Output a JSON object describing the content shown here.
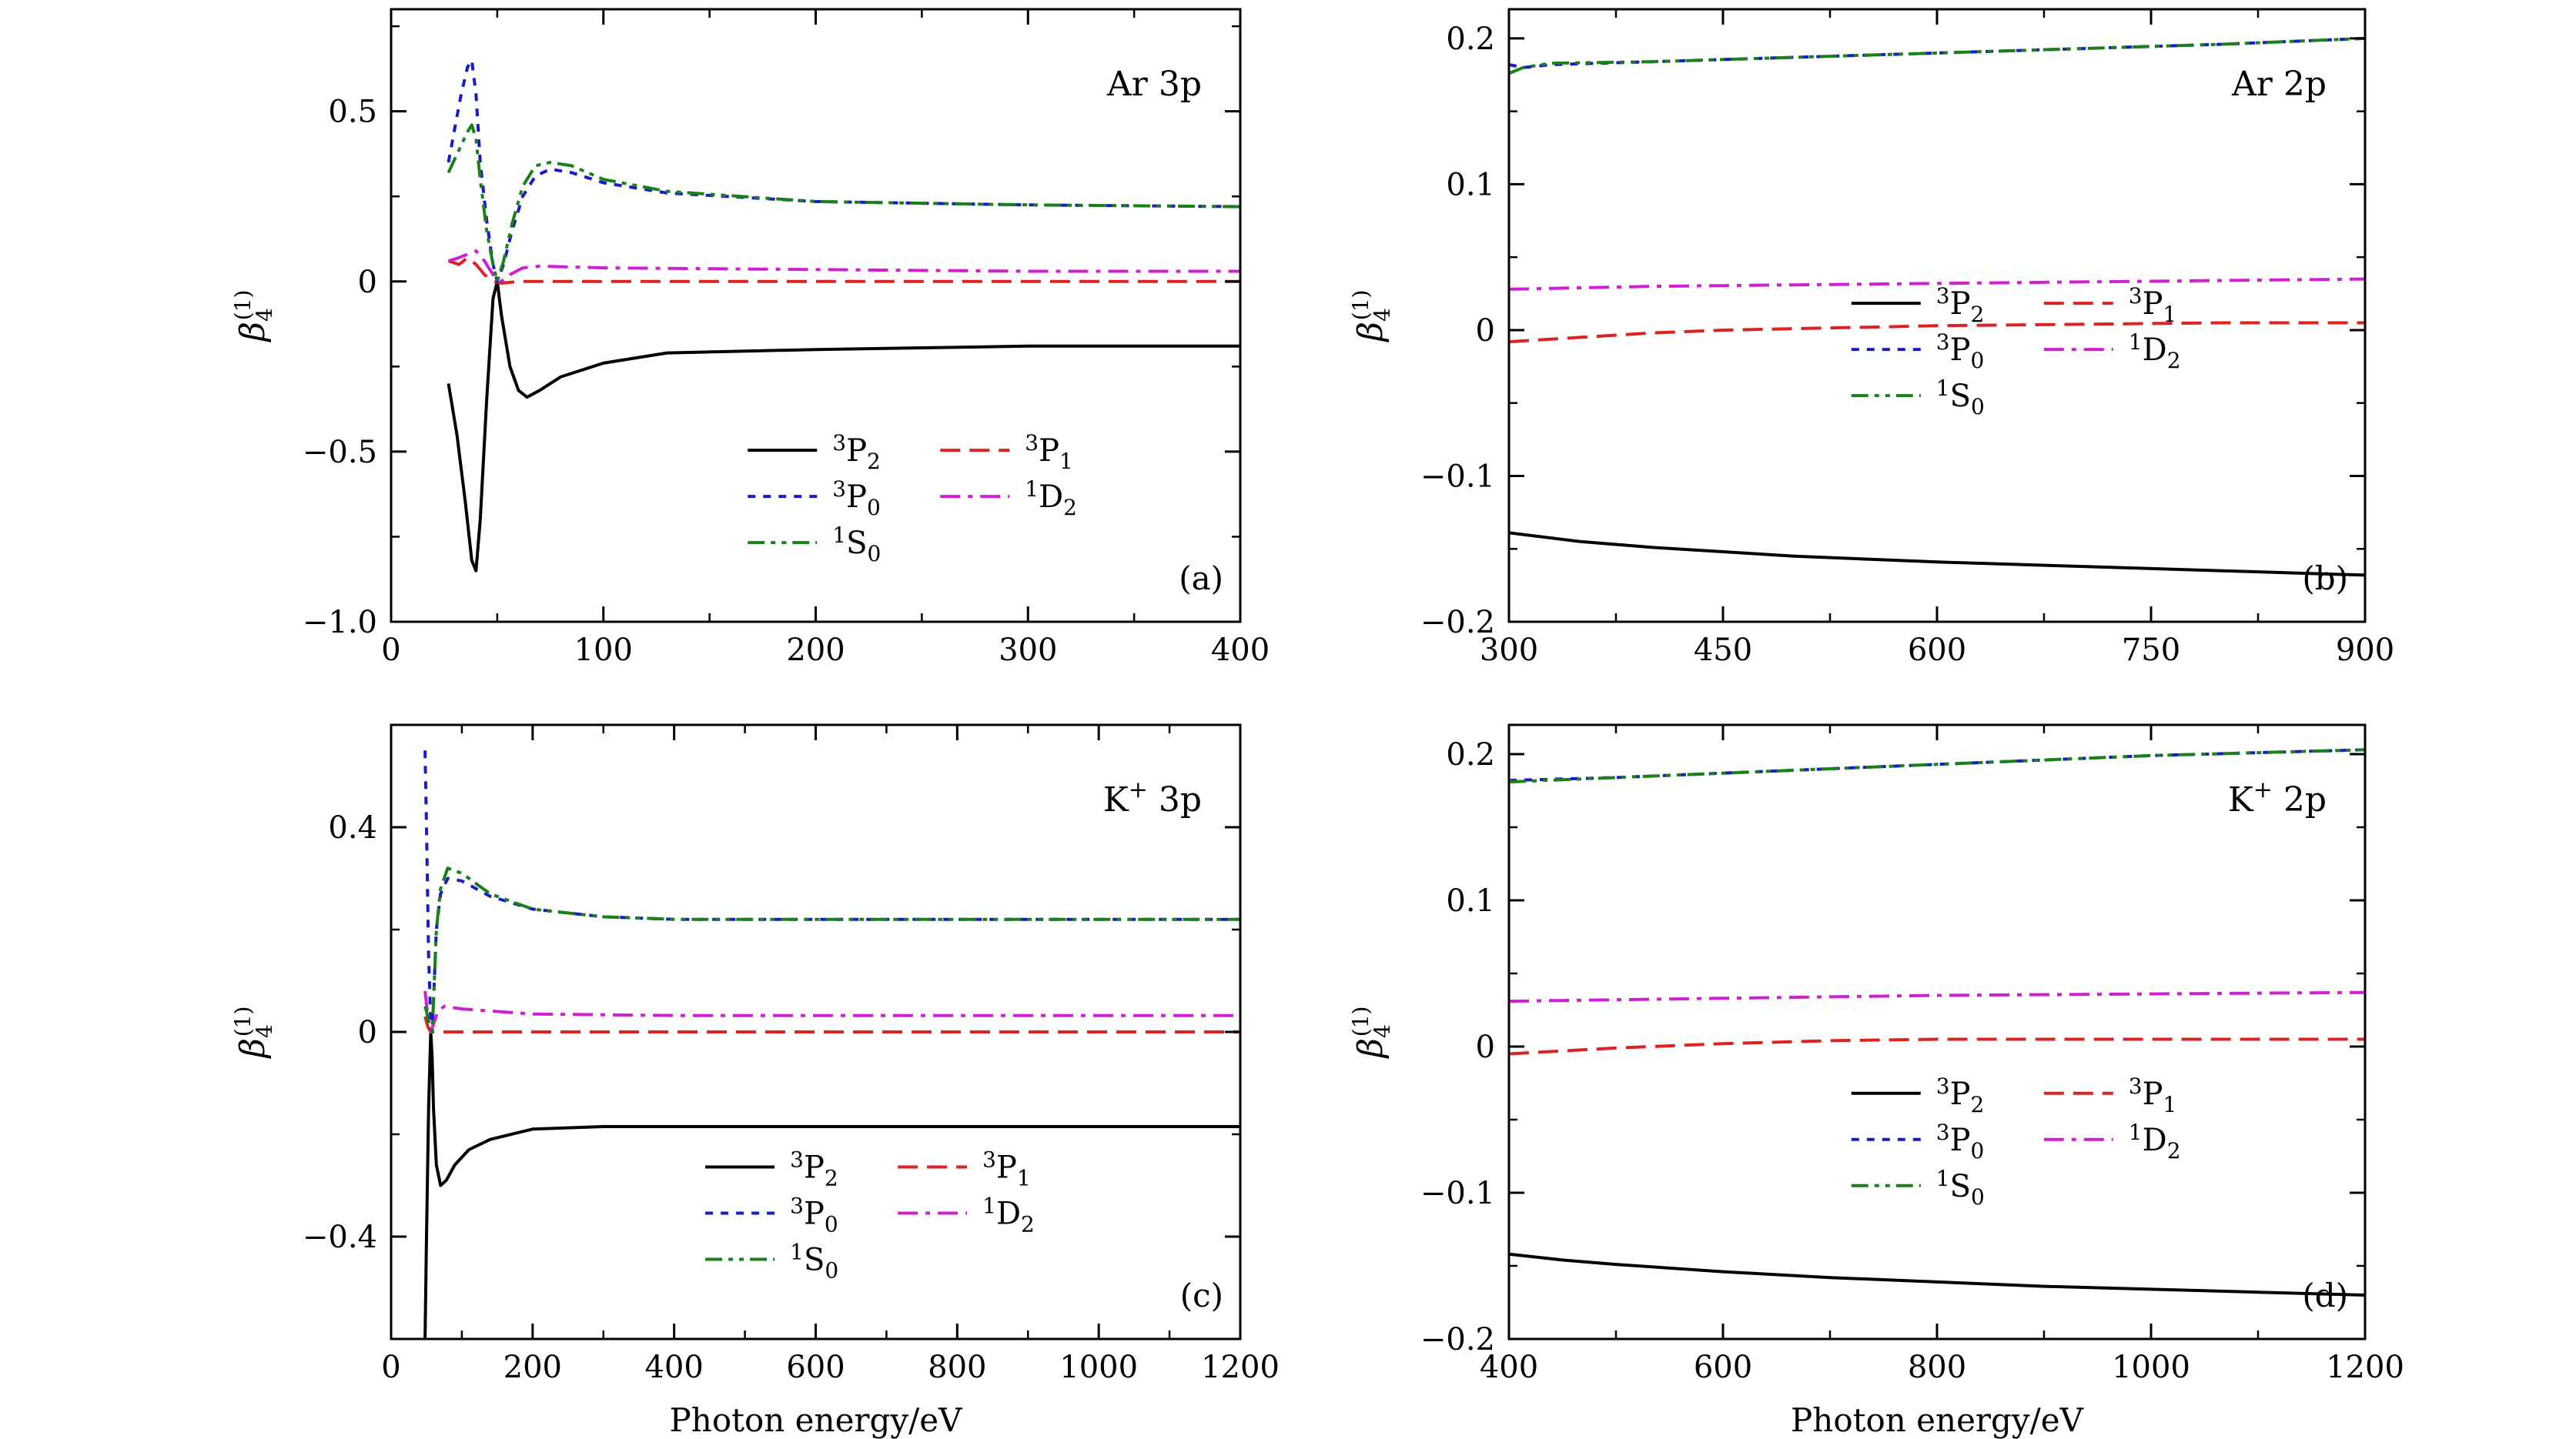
{
  "colors": {
    "3P2": "#000000",
    "3P1": "#dd2222",
    "3P0": "#1a1acc",
    "1D2": "#d01fd0",
    "1S0": "#1a801a"
  },
  "legend_entries": [
    {
      "key": "3P2",
      "sup": "3",
      "base": "P",
      "sub": "2"
    },
    {
      "key": "3P1",
      "sup": "3",
      "base": "P",
      "sub": "1"
    },
    {
      "key": "3P0",
      "sup": "3",
      "base": "P",
      "sub": "0"
    },
    {
      "key": "1D2",
      "sup": "1",
      "base": "D",
      "sub": "2"
    },
    {
      "key": "1S0",
      "sup": "1",
      "base": "S",
      "sub": "0"
    }
  ],
  "xlabel_text": "Photon energy/eV",
  "ylabel": {
    "symbol": "β",
    "sub": "4",
    "sup": "(1)"
  },
  "chart_data": [
    {
      "type": "line",
      "id": "a",
      "title": "Ar 3p",
      "title_sup": "",
      "title_tail": "",
      "panel_label": "(a)",
      "xlim": [
        0,
        400
      ],
      "ylim": [
        -1.0,
        0.8
      ],
      "xticks": [
        0,
        100,
        200,
        300,
        400
      ],
      "xtick_labels": [
        "0",
        "100",
        "200",
        "300",
        "400"
      ],
      "yticks": [
        -1.0,
        -0.5,
        0,
        0.5
      ],
      "ytick_labels": [
        "−1.0",
        "−0.5",
        "0",
        "0.5"
      ],
      "xlabel": "",
      "series": [
        {
          "name": "3P2",
          "x": [
            27,
            31,
            35,
            38,
            40,
            42,
            45,
            48,
            50,
            52,
            56,
            60,
            64,
            70,
            80,
            100,
            130,
            200,
            300,
            400
          ],
          "y": [
            -0.3,
            -0.45,
            -0.65,
            -0.82,
            -0.85,
            -0.7,
            -0.35,
            -0.05,
            0.0,
            -0.1,
            -0.25,
            -0.32,
            -0.34,
            -0.32,
            -0.28,
            -0.24,
            -0.21,
            -0.2,
            -0.19,
            -0.19
          ]
        },
        {
          "name": "3P1",
          "x": [
            27,
            32,
            36,
            40,
            44,
            48,
            52,
            60,
            70,
            100,
            200,
            300,
            400
          ],
          "y": [
            0.06,
            0.05,
            0.07,
            0.05,
            0.02,
            0.0,
            -0.005,
            0.0,
            0.0,
            0.0,
            0.0,
            0.0,
            0.0
          ]
        },
        {
          "name": "3P0",
          "x": [
            27,
            30,
            33,
            36,
            38,
            40,
            42,
            45,
            48,
            50,
            53,
            57,
            62,
            68,
            75,
            85,
            100,
            130,
            200,
            300,
            400
          ],
          "y": [
            0.35,
            0.45,
            0.55,
            0.63,
            0.65,
            0.55,
            0.35,
            0.18,
            0.05,
            0.0,
            0.05,
            0.15,
            0.25,
            0.31,
            0.33,
            0.32,
            0.29,
            0.26,
            0.235,
            0.225,
            0.22
          ]
        },
        {
          "name": "1D2",
          "x": [
            27,
            32,
            36,
            40,
            44,
            48,
            52,
            56,
            62,
            70,
            100,
            200,
            300,
            400
          ],
          "y": [
            0.06,
            0.07,
            0.08,
            0.09,
            0.06,
            0.02,
            0.0,
            0.02,
            0.04,
            0.045,
            0.04,
            0.035,
            0.03,
            0.03
          ]
        },
        {
          "name": "1S0",
          "x": [
            27,
            30,
            33,
            36,
            38,
            40,
            42,
            45,
            48,
            50,
            53,
            57,
            62,
            68,
            75,
            85,
            100,
            130,
            200,
            300,
            400
          ],
          "y": [
            0.32,
            0.36,
            0.4,
            0.44,
            0.46,
            0.42,
            0.3,
            0.15,
            0.05,
            0.0,
            0.06,
            0.17,
            0.28,
            0.34,
            0.35,
            0.34,
            0.3,
            0.265,
            0.235,
            0.225,
            0.22
          ]
        }
      ],
      "legend": {
        "x": 0.42,
        "y": 0.72
      }
    },
    {
      "type": "line",
      "id": "b",
      "title": "Ar 2p",
      "title_sup": "",
      "title_tail": "",
      "panel_label": "(b)",
      "xlim": [
        300,
        900
      ],
      "ylim": [
        -0.2,
        0.22
      ],
      "xticks": [
        300,
        450,
        600,
        750,
        900
      ],
      "xtick_labels": [
        "300",
        "450",
        "600",
        "750",
        "900"
      ],
      "yticks": [
        -0.2,
        -0.1,
        0,
        0.1,
        0.2
      ],
      "ytick_labels": [
        "−0.2",
        "−0.1",
        "0",
        "0.1",
        "0.2"
      ],
      "xlabel": "",
      "series": [
        {
          "name": "3P2",
          "x": [
            300,
            350,
            400,
            450,
            500,
            600,
            700,
            800,
            900
          ],
          "y": [
            -0.139,
            -0.145,
            -0.149,
            -0.152,
            -0.155,
            -0.159,
            -0.162,
            -0.165,
            -0.168
          ]
        },
        {
          "name": "3P1",
          "x": [
            300,
            350,
            400,
            450,
            500,
            600,
            700,
            800,
            900
          ],
          "y": [
            -0.008,
            -0.005,
            -0.002,
            0.0,
            0.001,
            0.003,
            0.004,
            0.005,
            0.005
          ]
        },
        {
          "name": "3P0",
          "x": [
            300,
            310,
            330,
            400,
            500,
            600,
            700,
            800,
            900
          ],
          "y": [
            0.182,
            0.18,
            0.182,
            0.184,
            0.187,
            0.19,
            0.193,
            0.196,
            0.2
          ]
        },
        {
          "name": "1D2",
          "x": [
            300,
            400,
            500,
            600,
            700,
            800,
            900
          ],
          "y": [
            0.028,
            0.03,
            0.031,
            0.032,
            0.033,
            0.034,
            0.035
          ]
        },
        {
          "name": "1S0",
          "x": [
            300,
            310,
            330,
            400,
            500,
            600,
            700,
            800,
            900
          ],
          "y": [
            0.176,
            0.18,
            0.183,
            0.184,
            0.187,
            0.19,
            0.193,
            0.196,
            0.2
          ]
        }
      ],
      "legend": {
        "x": 0.4,
        "y": 0.48
      }
    },
    {
      "type": "line",
      "id": "c",
      "title": "K",
      "title_sup": "+",
      "title_tail": " 3p",
      "panel_label": "(c)",
      "xlim": [
        0,
        1200
      ],
      "ylim": [
        -0.6,
        0.6
      ],
      "xticks": [
        0,
        200,
        400,
        600,
        800,
        1000,
        1200
      ],
      "xtick_labels": [
        "0",
        "200",
        "400",
        "600",
        "800",
        "1000",
        "1200"
      ],
      "yticks": [
        -0.4,
        0,
        0.4
      ],
      "ytick_labels": [
        "−0.4",
        "0",
        "0.4"
      ],
      "xlabel": "Photon energy/eV",
      "series": [
        {
          "name": "3P2",
          "x": [
            48,
            50,
            53,
            56,
            58,
            60,
            64,
            70,
            78,
            90,
            110,
            140,
            200,
            300,
            500,
            800,
            1200
          ],
          "y": [
            -0.6,
            -0.4,
            -0.15,
            0.0,
            -0.05,
            -0.15,
            -0.26,
            -0.3,
            -0.29,
            -0.26,
            -0.23,
            -0.21,
            -0.19,
            -0.185,
            -0.185,
            -0.185,
            -0.185
          ]
        },
        {
          "name": "3P1",
          "x": [
            48,
            52,
            56,
            60,
            70,
            100,
            200,
            400,
            800,
            1200
          ],
          "y": [
            0.03,
            0.01,
            0.0,
            0.0,
            0.0,
            0.0,
            0.0,
            0.0,
            0.0,
            0.0
          ]
        },
        {
          "name": "3P0",
          "x": [
            48,
            50,
            53,
            56,
            58,
            60,
            64,
            70,
            80,
            100,
            140,
            200,
            300,
            400,
            600,
            800,
            1200
          ],
          "y": [
            0.55,
            0.4,
            0.15,
            0.02,
            0.0,
            0.06,
            0.2,
            0.27,
            0.3,
            0.295,
            0.265,
            0.24,
            0.225,
            0.22,
            0.22,
            0.22,
            0.22
          ]
        },
        {
          "name": "1D2",
          "x": [
            48,
            52,
            56,
            60,
            66,
            75,
            100,
            200,
            400,
            800,
            1200
          ],
          "y": [
            0.08,
            0.03,
            0.0,
            0.015,
            0.04,
            0.05,
            0.045,
            0.035,
            0.032,
            0.032,
            0.032
          ]
        },
        {
          "name": "1S0",
          "x": [
            48,
            50,
            53,
            56,
            58,
            60,
            64,
            70,
            80,
            100,
            140,
            200,
            300,
            400,
            600,
            800,
            1200
          ],
          "y": [
            0.05,
            0.04,
            0.02,
            0.01,
            0.0,
            0.06,
            0.2,
            0.28,
            0.32,
            0.31,
            0.27,
            0.24,
            0.225,
            0.22,
            0.22,
            0.22,
            0.22
          ]
        }
      ],
      "legend": {
        "x": 0.37,
        "y": 0.72
      }
    },
    {
      "type": "line",
      "id": "d",
      "title": "K",
      "title_sup": "+",
      "title_tail": " 2p",
      "panel_label": "(d)",
      "xlim": [
        400,
        1200
      ],
      "ylim": [
        -0.2,
        0.22
      ],
      "xticks": [
        400,
        600,
        800,
        1000,
        1200
      ],
      "xtick_labels": [
        "400",
        "600",
        "800",
        "1000",
        "1200"
      ],
      "yticks": [
        -0.2,
        -0.1,
        0,
        0.1,
        0.2
      ],
      "ytick_labels": [
        "−0.2",
        "−0.1",
        "0",
        "0.1",
        "0.2"
      ],
      "xlabel": "Photon energy/eV",
      "series": [
        {
          "name": "3P2",
          "x": [
            400,
            450,
            500,
            600,
            700,
            800,
            900,
            1000,
            1100,
            1200
          ],
          "y": [
            -0.142,
            -0.146,
            -0.149,
            -0.154,
            -0.158,
            -0.161,
            -0.164,
            -0.166,
            -0.168,
            -0.17
          ]
        },
        {
          "name": "3P1",
          "x": [
            400,
            500,
            600,
            700,
            800,
            1000,
            1200
          ],
          "y": [
            -0.005,
            -0.001,
            0.002,
            0.004,
            0.005,
            0.005,
            0.005
          ]
        },
        {
          "name": "3P0",
          "x": [
            400,
            500,
            600,
            700,
            800,
            900,
            1000,
            1100,
            1200
          ],
          "y": [
            0.182,
            0.184,
            0.187,
            0.19,
            0.193,
            0.196,
            0.199,
            0.201,
            0.203
          ]
        },
        {
          "name": "1D2",
          "x": [
            400,
            500,
            600,
            700,
            800,
            1000,
            1200
          ],
          "y": [
            0.031,
            0.032,
            0.033,
            0.034,
            0.035,
            0.036,
            0.037
          ]
        },
        {
          "name": "1S0",
          "x": [
            400,
            500,
            600,
            700,
            800,
            900,
            1000,
            1100,
            1200
          ],
          "y": [
            0.181,
            0.184,
            0.187,
            0.19,
            0.193,
            0.196,
            0.199,
            0.201,
            0.203
          ]
        }
      ],
      "legend": {
        "x": 0.4,
        "y": 0.6
      }
    }
  ]
}
